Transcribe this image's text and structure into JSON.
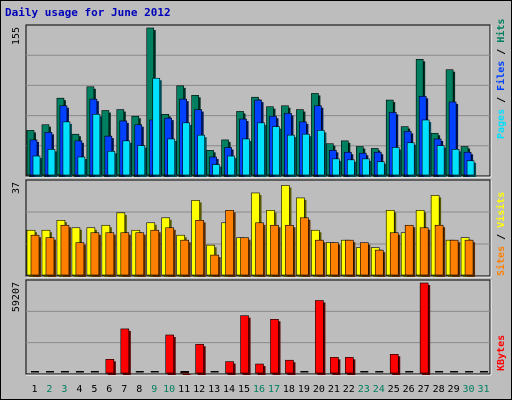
{
  "title": "Daily usage for June 2012",
  "right_labels": {
    "pages": "Pages",
    "files": "Files",
    "hits": "Hits",
    "sites": "Sites",
    "visits": "Visits",
    "kbytes": "KBytes",
    "sep": " / "
  },
  "colors": {
    "hits": "#008060",
    "files": "#0040ff",
    "pages": "#00e0ff",
    "visits": "#ffff00",
    "sites": "#ff8000",
    "kbytes": "#ff0000",
    "background": "#bdbdbd",
    "day_weekday": "#000000",
    "day_weekend": "#008060"
  },
  "chart_data": [
    {
      "type": "bar",
      "name": "hits-files-pages",
      "categories": [
        "1",
        "2",
        "3",
        "4",
        "5",
        "6",
        "7",
        "8",
        "9",
        "10",
        "11",
        "12",
        "13",
        "14",
        "15",
        "16",
        "17",
        "18",
        "19",
        "20",
        "21",
        "22",
        "23",
        "24",
        "25",
        "26",
        "27",
        "28",
        "29",
        "30",
        "31"
      ],
      "ymax_label": "155",
      "ylim": [
        0,
        155
      ],
      "series": [
        {
          "name": "Hits",
          "values": [
            47,
            53,
            81,
            43,
            93,
            68,
            69,
            62,
            155,
            64,
            94,
            84,
            26,
            37,
            67,
            82,
            72,
            73,
            69,
            86,
            33,
            36,
            30,
            28,
            79,
            51,
            122,
            44,
            111,
            30,
            0
          ]
        },
        {
          "name": "Files",
          "values": [
            37,
            45,
            73,
            36,
            80,
            41,
            57,
            53,
            58,
            60,
            80,
            69,
            19,
            29,
            59,
            79,
            62,
            65,
            56,
            73,
            26,
            24,
            23,
            24,
            66,
            46,
            83,
            38,
            77,
            24,
            0
          ]
        },
        {
          "name": "Pages",
          "values": [
            20,
            27,
            56,
            19,
            64,
            25,
            36,
            31,
            102,
            38,
            55,
            42,
            11,
            20,
            38,
            55,
            51,
            42,
            43,
            47,
            17,
            16,
            17,
            14,
            29,
            34,
            58,
            31,
            27,
            15,
            0
          ]
        }
      ]
    },
    {
      "type": "bar",
      "name": "visits-sites",
      "categories": [
        "1",
        "2",
        "3",
        "4",
        "5",
        "6",
        "7",
        "8",
        "9",
        "10",
        "11",
        "12",
        "13",
        "14",
        "15",
        "16",
        "17",
        "18",
        "19",
        "20",
        "21",
        "22",
        "23",
        "24",
        "25",
        "26",
        "27",
        "28",
        "29",
        "30",
        "31"
      ],
      "ymax_label": "37",
      "ylim": [
        0,
        37
      ],
      "series": [
        {
          "name": "Visits",
          "values": [
            18,
            18,
            22,
            19,
            19,
            20,
            25,
            18,
            21,
            23,
            16,
            30,
            12,
            21,
            15,
            33,
            26,
            36,
            31,
            18,
            13,
            14,
            11,
            11,
            26,
            17,
            26,
            32,
            14,
            15,
            0
          ]
        },
        {
          "name": "Sites",
          "values": [
            16,
            15,
            20,
            13,
            17,
            17,
            17,
            17,
            18,
            19,
            14,
            22,
            8,
            26,
            15,
            21,
            20,
            20,
            23,
            14,
            13,
            14,
            13,
            10,
            17,
            20,
            19,
            20,
            14,
            14,
            0
          ]
        }
      ]
    },
    {
      "type": "bar",
      "name": "kbytes",
      "categories": [
        "1",
        "2",
        "3",
        "4",
        "5",
        "6",
        "7",
        "8",
        "9",
        "10",
        "11",
        "12",
        "13",
        "14",
        "15",
        "16",
        "17",
        "18",
        "19",
        "20",
        "21",
        "22",
        "23",
        "24",
        "25",
        "26",
        "27",
        "28",
        "29",
        "30",
        "31"
      ],
      "ymax_label": "59207",
      "ylim": [
        0,
        59207
      ],
      "series": [
        {
          "name": "KBytes",
          "values": [
            0,
            0,
            0,
            0,
            0,
            9000,
            29000,
            0,
            0,
            25000,
            900,
            18900,
            0,
            7500,
            37700,
            5900,
            35300,
            8400,
            0,
            47700,
            10300,
            10300,
            0,
            0,
            12300,
            0,
            59207,
            0,
            0,
            0,
            0
          ]
        }
      ]
    }
  ]
}
